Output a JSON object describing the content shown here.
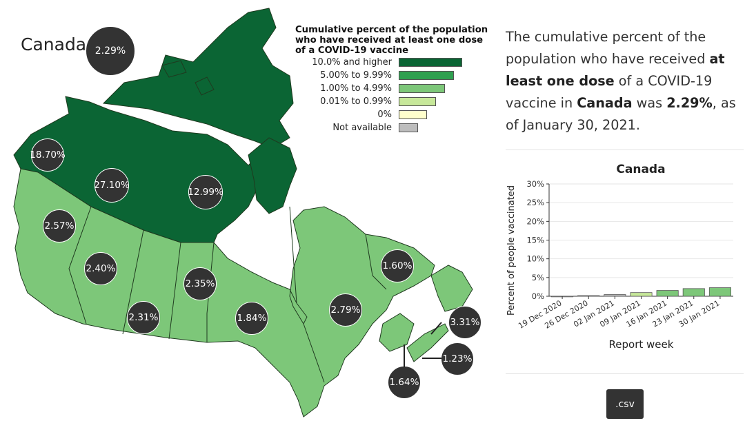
{
  "map": {
    "country_label": "Canada",
    "country_value": "2.29%",
    "bubbles": [
      {
        "name": "yukon",
        "value": "18.70%"
      },
      {
        "name": "northwest-territories",
        "value": "27.10%"
      },
      {
        "name": "nunavut",
        "value": "12.99%"
      },
      {
        "name": "british-columbia",
        "value": "2.57%"
      },
      {
        "name": "alberta",
        "value": "2.40%"
      },
      {
        "name": "saskatchewan",
        "value": "2.31%"
      },
      {
        "name": "manitoba",
        "value": "2.35%"
      },
      {
        "name": "ontario",
        "value": "1.84%"
      },
      {
        "name": "quebec",
        "value": "2.79%"
      },
      {
        "name": "newfoundland-and-labrador",
        "value": "1.60%"
      },
      {
        "name": "nova-scotia",
        "value": "3.31%"
      },
      {
        "name": "prince-edward-island",
        "value": "1.23%"
      },
      {
        "name": "new-brunswick",
        "value": "1.64%"
      }
    ],
    "colors": {
      "dark_green": "#0b6534",
      "light_green": "#7dc779",
      "bubble": "#333333",
      "border": "#1f3a1f"
    }
  },
  "legend": {
    "title": "Cumulative percent of the population who have received at least one dose of a COVID-19 vaccine",
    "items": [
      {
        "label": "10.0% and higher",
        "color": "#0b6534"
      },
      {
        "label": "5.00% to 9.99%",
        "color": "#2fa050"
      },
      {
        "label": "1.00% to 4.99%",
        "color": "#7dc779"
      },
      {
        "label": "0.01% to 0.99%",
        "color": "#c7e89a"
      },
      {
        "label": "0%",
        "color": "#ffffcc"
      },
      {
        "label": "Not available",
        "color": "#bdbdbd"
      }
    ]
  },
  "description": {
    "part1": "The cumulative percent of the population who have received ",
    "bold1": "at least one dose",
    "part2": " of a COVID-19 vaccine in ",
    "bold2": "Canada",
    "part3": " was ",
    "bold3": "2.29%",
    "part4": ", as of January 30, 2021."
  },
  "chart_data": {
    "type": "bar",
    "title": "Canada",
    "xlabel": "Report week",
    "ylabel": "Percent of people vaccinated",
    "categories": [
      "19 Dec 2020",
      "26 Dec 2020",
      "02 Jan 2021",
      "09 Jan 2021",
      "16 Jan 2021",
      "23 Jan 2021",
      "30 Jan 2021"
    ],
    "values": [
      0.02,
      0.18,
      0.45,
      0.98,
      1.55,
      2.05,
      2.29
    ],
    "bar_colors": [
      "#bdbdbd",
      "#bdbdbd",
      "#bdbdbd",
      "#c7e89a",
      "#7dc779",
      "#7dc779",
      "#7dc779"
    ],
    "ylim": [
      0,
      30
    ],
    "yticks": [
      "0%",
      "5%",
      "10%",
      "15%",
      "20%",
      "25%",
      "30%"
    ],
    "grid": true
  },
  "csv_button": {
    "label": ".csv"
  }
}
